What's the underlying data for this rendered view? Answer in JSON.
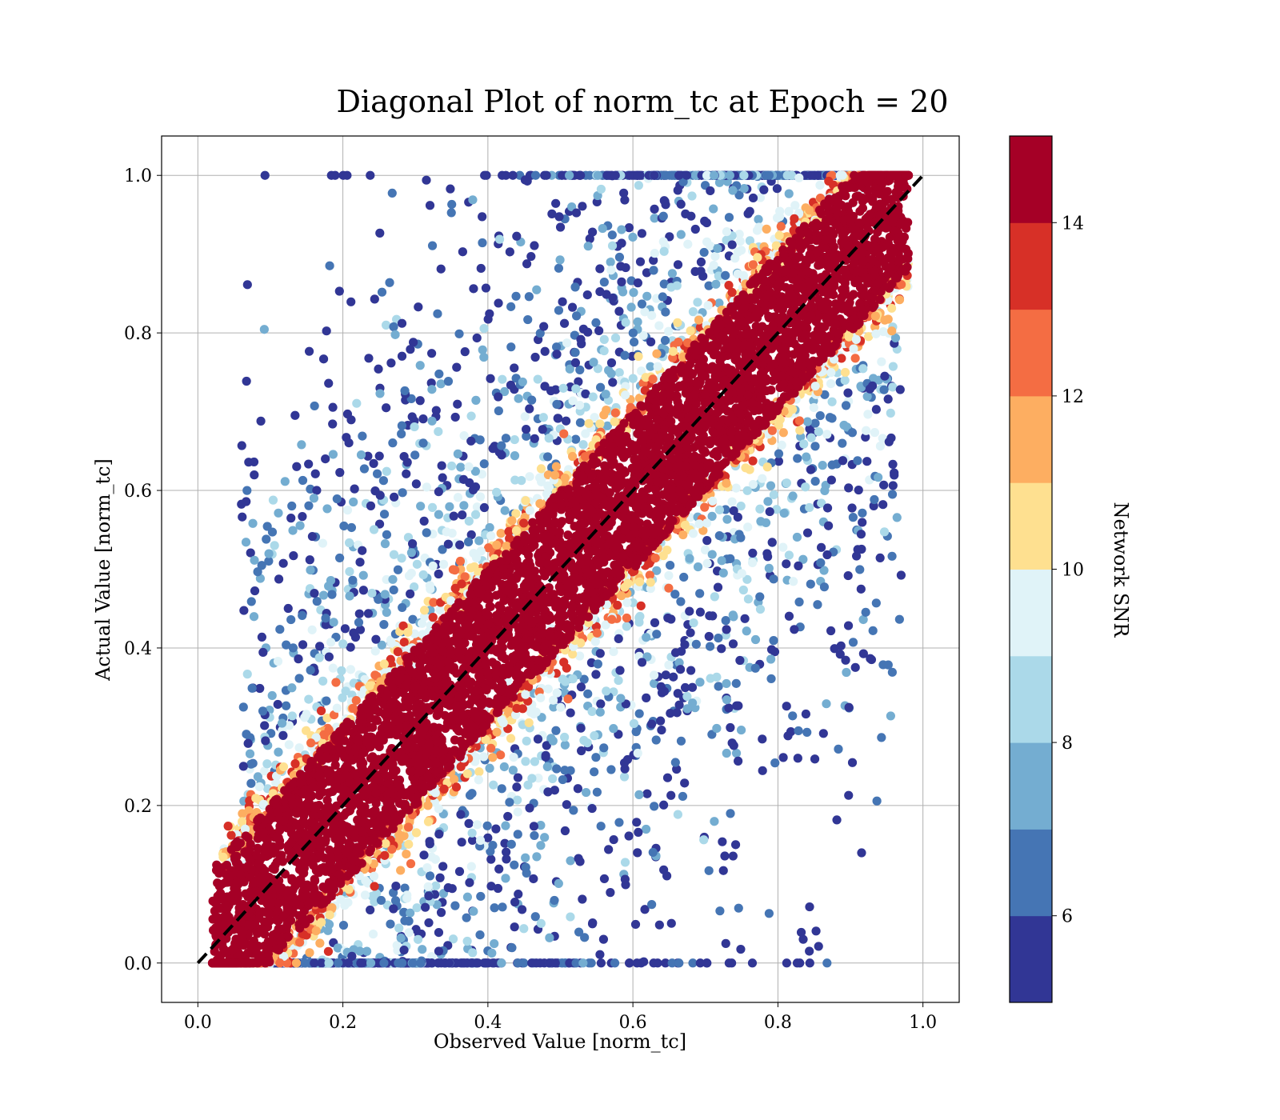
{
  "chart_data": {
    "type": "scatter",
    "title": "Diagonal Plot of norm_tc at Epoch = 20",
    "xlabel": "Observed Value [norm_tc]",
    "ylabel": "Actual Value [norm_tc]",
    "xlim": [
      -0.05,
      1.05
    ],
    "ylim": [
      -0.05,
      1.05
    ],
    "x_ticks": [
      "0.0",
      "0.2",
      "0.4",
      "0.6",
      "0.8",
      "1.0"
    ],
    "y_ticks": [
      "0.0",
      "0.2",
      "0.4",
      "0.6",
      "0.8",
      "1.0"
    ],
    "x_tick_values": [
      0.0,
      0.2,
      0.4,
      0.6,
      0.8,
      1.0
    ],
    "y_tick_values": [
      0.0,
      0.2,
      0.4,
      0.6,
      0.8,
      1.0
    ],
    "grid": true,
    "reference_line": {
      "style": "dashed",
      "color": "#000000",
      "x": [
        0.0,
        1.0
      ],
      "y": [
        0.0,
        1.0
      ]
    },
    "points_description_note": "",
    "density_model": {
      "high_snr_band": {
        "snr": 15,
        "color": "#a50026",
        "x_range": [
          0.02,
          0.98
        ],
        "half_width": 0.1
      },
      "scatter_by_snr": [
        {
          "snr_min": 5,
          "snr_max": 6,
          "color": "#313695"
        },
        {
          "snr_min": 6,
          "snr_max": 7,
          "color": "#4575b4"
        },
        {
          "snr_min": 7,
          "snr_max": 8,
          "color": "#74add1"
        },
        {
          "snr_min": 8,
          "snr_max": 9,
          "color": "#abd9e9"
        },
        {
          "snr_min": 9,
          "snr_max": 10,
          "color": "#e0f3f8"
        },
        {
          "snr_min": 10,
          "snr_max": 11,
          "color": "#fee090"
        },
        {
          "snr_min": 11,
          "snr_max": 12,
          "color": "#fdae61"
        },
        {
          "snr_min": 12,
          "snr_max": 13,
          "color": "#f46d43"
        },
        {
          "snr_min": 13,
          "snr_max": 14,
          "color": "#d73027"
        },
        {
          "snr_min": 14,
          "snr_max": 15,
          "color": "#a50026"
        }
      ]
    },
    "colorbar": {
      "label": "Network SNR",
      "range": [
        5,
        15
      ],
      "ticks": [
        "6",
        "8",
        "10",
        "12",
        "14"
      ],
      "tick_values": [
        6,
        8,
        10,
        12,
        14
      ],
      "bins": [
        {
          "from": 5,
          "to": 6,
          "color": "#313695"
        },
        {
          "from": 6,
          "to": 7,
          "color": "#4575b4"
        },
        {
          "from": 7,
          "to": 8,
          "color": "#74add1"
        },
        {
          "from": 8,
          "to": 9,
          "color": "#abd9e9"
        },
        {
          "from": 9,
          "to": 10,
          "color": "#e0f3f8"
        },
        {
          "from": 10,
          "to": 11,
          "color": "#fee090"
        },
        {
          "from": 11,
          "to": 12,
          "color": "#fdae61"
        },
        {
          "from": 12,
          "to": 13,
          "color": "#f46d43"
        },
        {
          "from": 13,
          "to": 14,
          "color": "#d73027"
        },
        {
          "from": 14,
          "to": 15,
          "color": "#a50026"
        }
      ]
    }
  }
}
